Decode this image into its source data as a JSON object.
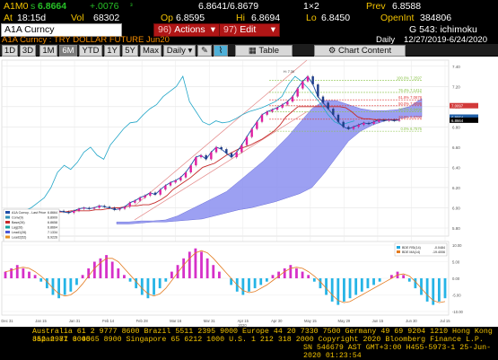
{
  "quote": {
    "ticker": "A1M0",
    "last_flag": "s",
    "last": "6.8664",
    "change": "+.0076",
    "indicator": "³",
    "bid_ask": "6.8641/6.8679",
    "size": "1×2",
    "prev_label": "Prev",
    "prev": "6.8588",
    "at_label": "At",
    "time": "18:15d",
    "vol_label": "Vol",
    "vol": "68302",
    "op_label": "Op",
    "op": "6.8595",
    "hi_label": "Hi",
    "hi": "6.8694",
    "lo_label": "Lo",
    "lo": "6.8450",
    "oi_label": "OpenInt",
    "oi": "384806"
  },
  "toolbar": {
    "security": "A1A Curncy",
    "actions_num": "96)",
    "actions_label": "Actions",
    "edit_num": "97)",
    "edit_label": "Edit",
    "page": "G 543: ichimoku"
  },
  "subtitle": {
    "name": "A1A Curncy : TRY DOLLAR FUTURE Jun20",
    "freq": "Daily",
    "range": "12/27/2019-6/24/2020"
  },
  "tabs": [
    "1D",
    "3D",
    "1M",
    "6M",
    "YTD",
    "1Y",
    "5Y",
    "Max",
    "Daily ▾"
  ],
  "selected_tab": "6M",
  "tools": {
    "table": "Table",
    "chart_content": "Chart Content"
  },
  "chart_data": [
    {
      "type": "line",
      "title": "",
      "x_ticks": [
        "Dec 31",
        "Jan 15",
        "Jan 31",
        "Feb 14",
        "Feb 28",
        "Mar 16",
        "Mar 31",
        "Apr 15",
        "Apr 30",
        "May 15",
        "May 29",
        "Jun 15",
        "Jun 30",
        "Jul 15"
      ],
      "x_sublabel": "2020",
      "y_ticks": [
        "7.40",
        "7.20",
        "7.00",
        "6.80",
        "6.60",
        "6.40",
        "6.20",
        "6.00",
        "5.80",
        "5.60"
      ],
      "ylim": [
        5.72,
        7.46
      ],
      "fib_levels": [
        {
          "label": "100.0% 7.2597",
          "value": 7.2597
        },
        {
          "label": "76.4% 7.1412",
          "value": 7.1412
        },
        {
          "label": "61.8% 7.0678",
          "value": 7.0678
        },
        {
          "label": "50.0% 7.0086",
          "value": 7.0086
        },
        {
          "label": "38.2% 6.9494",
          "value": 6.9494
        },
        {
          "label": "23.6% 6.8760",
          "value": 6.876
        },
        {
          "label": "0.0% 6.7575",
          "value": 6.7575
        }
      ],
      "right_labels": [
        {
          "label": "7.0097",
          "value": 7.0097,
          "color": "#d23a3a"
        },
        {
          "label": "6.8964",
          "value": 6.8964,
          "color": "#1f5fa8"
        },
        {
          "label": "6.8664",
          "value": 6.8664,
          "color": "#000000"
        }
      ],
      "legend": [
        {
          "name": "A1A Curncy - Last Price",
          "value": "6.8664",
          "color": "#1f4ea8"
        },
        {
          "name": "Conv(9)",
          "value": "6.8909",
          "color": "#2e8fb6"
        },
        {
          "name": "Base(26)",
          "value": "6.8658",
          "color": "#c62a2a"
        },
        {
          "name": "Lag(26)",
          "value": "6.8664",
          "color": "#10a0a0"
        },
        {
          "name": "Lead1(26)",
          "value": "7.1334",
          "color": "#4b59d8"
        },
        {
          "name": "Lead2(52)",
          "value": "6.9226",
          "color": "#e59020"
        }
      ],
      "series": [
        {
          "name": "Last Price",
          "values": [
            5.93,
            5.94,
            5.95,
            5.93,
            5.92,
            5.93,
            5.95,
            5.96,
            5.97,
            5.96,
            5.95,
            5.97,
            5.99,
            6.0,
            5.99,
            6.0,
            6.02,
            6.01,
            6.0,
            5.98,
            5.99,
            6.01,
            6.05,
            6.07,
            6.1,
            6.12,
            6.15,
            6.13,
            6.18,
            6.22,
            6.25,
            6.27,
            6.3,
            6.35,
            6.42,
            6.5,
            6.52,
            6.48,
            6.55,
            6.6,
            6.58,
            6.54,
            6.5,
            6.55,
            6.62,
            6.7,
            6.78,
            6.85,
            6.92,
            6.95,
            6.97,
            6.99,
            7.02,
            7.05,
            7.1,
            7.18,
            7.25,
            7.3,
            7.22,
            7.1,
            7.04,
            6.98,
            6.92,
            6.85,
            6.8,
            6.78,
            6.8,
            6.82,
            6.84,
            6.83,
            6.85,
            6.87,
            6.86,
            6.87,
            6.86,
            6.87
          ]
        },
        {
          "name": "Base(26)",
          "values": [
            5.96,
            5.96,
            5.96,
            5.96,
            5.96,
            5.96,
            5.96,
            5.96,
            5.96,
            5.97,
            5.97,
            5.97,
            5.97,
            5.98,
            5.98,
            5.99,
            6.0,
            6.0,
            6.01,
            6.02,
            6.02,
            6.03,
            6.03,
            6.05,
            6.08,
            6.12,
            6.18,
            6.22,
            6.26,
            6.3,
            6.35,
            6.4,
            6.42,
            6.44,
            6.48,
            6.52,
            6.55,
            6.58,
            6.6,
            6.62,
            6.65,
            6.68,
            6.72,
            6.76,
            6.82,
            6.9,
            6.95,
            7.0,
            7.0,
            7.0,
            7.0,
            7.0,
            7.0,
            7.0,
            7.0,
            6.99,
            6.95,
            6.9,
            6.88,
            6.88,
            6.87,
            6.87,
            6.87,
            6.87,
            6.87
          ]
        },
        {
          "name": "Lag(26)",
          "values": [
            5.95,
            5.97,
            6.0,
            6.05,
            6.1,
            6.2,
            6.35,
            6.42,
            6.38,
            6.45,
            6.55,
            6.6,
            6.52,
            6.48,
            6.62,
            6.7,
            6.78,
            6.84,
            6.85,
            6.92,
            6.98,
            7.02,
            7.1,
            7.15,
            7.2,
            7.3,
            7.05,
            6.95,
            6.85,
            6.82,
            6.86,
            6.84,
            6.85,
            6.88,
            6.92,
            6.95,
            6.97,
            6.99,
            7.02,
            7.05,
            7.1,
            7.22,
            7.3,
            7.25,
            7.18,
            7.1,
            7.02,
            6.92,
            6.85,
            6.82,
            6.84,
            6.86
          ]
        }
      ],
      "oscillator": {
        "legend": [
          {
            "name": "BDE RSI(14)",
            "value": "-0.0484",
            "color": "#1fa8e0"
          },
          {
            "name": "BDE MA(14)",
            "value": "-19.4006",
            "color": "#e37b20"
          }
        ],
        "y_ticks": [
          "10.00",
          "5.00",
          "0.00",
          "-5.00",
          "-10.00"
        ],
        "values": [
          2,
          3,
          4,
          3,
          2,
          1,
          -1,
          -3,
          -5,
          -6,
          -5,
          -4,
          -2,
          1,
          3,
          5,
          6,
          7,
          5,
          3,
          1,
          -1,
          -3,
          -5,
          -6,
          -5,
          -3,
          -1,
          2,
          4,
          6,
          8,
          9,
          8,
          6,
          4,
          2,
          0,
          -2,
          -4,
          -5,
          -4,
          -3,
          -2,
          -1,
          1,
          2,
          3,
          4,
          3,
          2,
          1,
          -1,
          -3,
          -5,
          -7,
          -8,
          -7,
          -6,
          -5,
          -4,
          -3,
          -2,
          -1,
          0,
          1,
          2,
          1,
          -1,
          -3,
          -5,
          -7,
          -8,
          -7,
          -6
        ]
      }
    }
  ],
  "footer": {
    "line1": "Australia 61 2 9777 8600 Brazil 5511 2395 9000 Europe 44 20 7330 7500 Germany 49 69 9204 1210 Hong Kong 852 2977 6000",
    "line2": "Japan 81 3 4565 8900          Singapore 65 6212 1000          U.S. 1 212 318 2000          Copyright 2020 Bloomberg Finance L.P.",
    "line3": "SN 546679 AST  GMT+3:00 H455-5973-1 25-Jun-2020 01:23:54"
  }
}
